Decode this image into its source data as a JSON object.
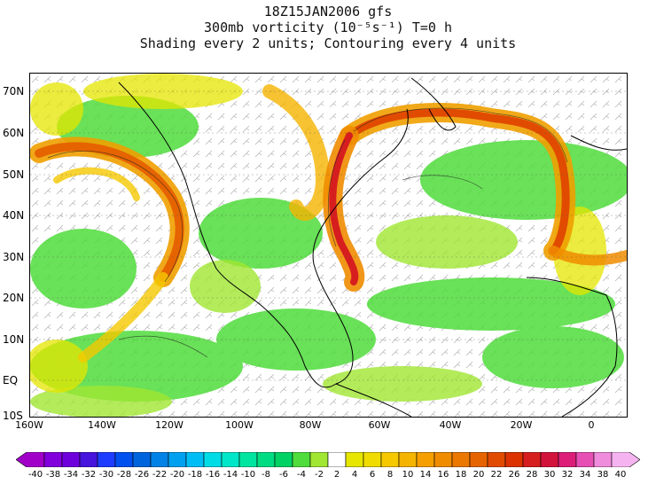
{
  "title": {
    "line1": "18Z15JAN2006 gfs",
    "line2": "300mb vorticity (10⁻⁵s⁻¹) T=0 h",
    "line3": "Shading every 2 units; Contouring every 4 units"
  },
  "lat_labels": [
    "70N",
    "60N",
    "50N",
    "40N",
    "30N",
    "20N",
    "10N",
    "EQ",
    "10S"
  ],
  "lon_labels": [
    "160W",
    "140W",
    "120W",
    "100W",
    "80W",
    "60W",
    "40W",
    "20W",
    "0"
  ],
  "colorbar": {
    "labels": [
      "-40",
      "-38",
      "-34",
      "-32",
      "-30",
      "-28",
      "-26",
      "-22",
      "-20",
      "-18",
      "-16",
      "-14",
      "-10",
      "-8",
      "-6",
      "-4",
      "-2",
      "2",
      "4",
      "6",
      "8",
      "10",
      "14",
      "16",
      "18",
      "20",
      "22",
      "26",
      "28",
      "30",
      "32",
      "34",
      "38",
      "40"
    ],
    "colors": [
      "#a000c8",
      "#8200dc",
      "#6e00dc",
      "#4614dc",
      "#1e3cff",
      "#0050f0",
      "#0064dc",
      "#0082e6",
      "#00a0f0",
      "#00bef5",
      "#00dce6",
      "#00e6c8",
      "#00e6a0",
      "#00dc82",
      "#00d264",
      "#50dc3c",
      "#a0e632",
      "#ffffff",
      "#e6e600",
      "#f0dc00",
      "#f5c800",
      "#f5b400",
      "#f5a000",
      "#f08c00",
      "#eb7800",
      "#e66400",
      "#e14b00",
      "#dc3200",
      "#d71e1e",
      "#d2143c",
      "#dc1e78",
      "#e650b4",
      "#f08cdc",
      "#f5b4f0"
    ]
  }
}
